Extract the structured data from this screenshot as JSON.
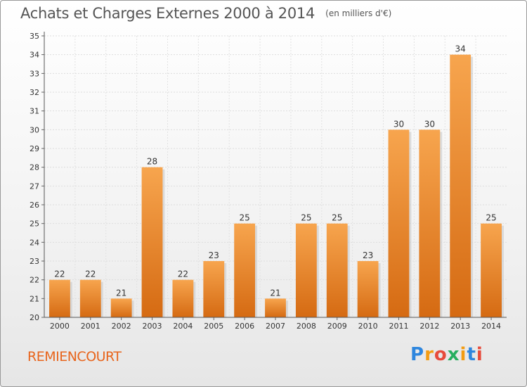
{
  "chart_data": {
    "type": "bar",
    "title": "Achats et Charges Externes 2000 à 2014",
    "subtitle": "(en milliers d'€)",
    "categories": [
      "2000",
      "2001",
      "2002",
      "2003",
      "2004",
      "2005",
      "2006",
      "2007",
      "2008",
      "2009",
      "2010",
      "2011",
      "2012",
      "2013",
      "2014"
    ],
    "values": [
      22,
      22,
      21,
      28,
      22,
      23,
      25,
      21,
      25,
      25,
      23,
      30,
      30,
      34,
      25
    ],
    "ylim": [
      20,
      35
    ],
    "yticks": [
      20,
      21,
      22,
      23,
      24,
      25,
      26,
      27,
      28,
      29,
      30,
      31,
      32,
      33,
      34,
      35
    ],
    "grid": true,
    "legend": "none",
    "bar_color": "#e8862e"
  },
  "place_name": "REMIENCOURT",
  "brand": {
    "letters": [
      "P",
      "r",
      "o",
      "x",
      "i",
      "t",
      "i"
    ],
    "colors": [
      "#2e86de",
      "#f39c12",
      "#e74c3c",
      "#27ae60",
      "#f39c12",
      "#2e86de",
      "#e74c3c"
    ]
  }
}
